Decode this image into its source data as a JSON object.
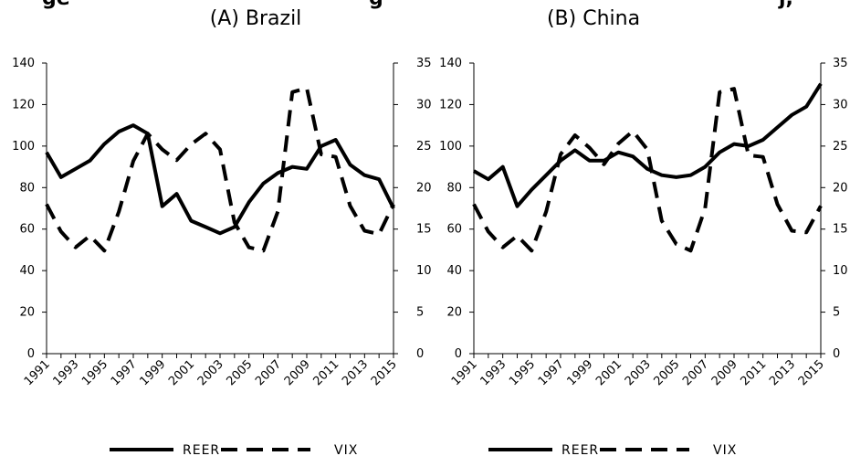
{
  "figure_title_left": "ge",
  "figure_title_mid": "g",
  "figure_title_right": "j,",
  "chart_data": [
    {
      "type": "line",
      "title": "(A) Brazil",
      "x": [
        1991,
        1992,
        1993,
        1994,
        1995,
        1996,
        1997,
        1998,
        1999,
        2000,
        2001,
        2002,
        2003,
        2004,
        2005,
        2006,
        2007,
        2008,
        2009,
        2010,
        2011,
        2012,
        2013,
        2014,
        2015
      ],
      "x_tick_labels": [
        "1991",
        "1993",
        "1995",
        "1997",
        "1999",
        "2001",
        "2003",
        "2005",
        "2007",
        "2009",
        "2011",
        "2013",
        "2015"
      ],
      "y_left_ticks": [
        "0",
        "20",
        "40",
        "60",
        "80",
        "100",
        "120",
        "140"
      ],
      "y_right_ticks": [
        "0",
        "5",
        "10",
        "15",
        "20",
        "25",
        "30",
        "35"
      ],
      "y_left_range": [
        0,
        140
      ],
      "y_right_range": [
        0,
        35
      ],
      "series": [
        {
          "name": "REER",
          "axis": "left",
          "style": "solid",
          "values": [
            97,
            85,
            89,
            93,
            101,
            107,
            110,
            106,
            71,
            77,
            64,
            61,
            58,
            61,
            73,
            82,
            87,
            90,
            89,
            100,
            103,
            91,
            86,
            84,
            70
          ]
        },
        {
          "name": "VIX",
          "axis": "right",
          "style": "dashed",
          "values": [
            18,
            14.7,
            12.8,
            14.2,
            12.4,
            17.1,
            23.2,
            26.5,
            24.6,
            23.3,
            25.2,
            26.5,
            24.6,
            15.8,
            12.8,
            12.4,
            17.1,
            31.5,
            32,
            24,
            23.7,
            17.8,
            14.8,
            14.4,
            18
          ]
        }
      ],
      "legend": [
        "REER",
        "VIX"
      ],
      "legend_position": "bottom"
    },
    {
      "type": "line",
      "title": "(B) China",
      "x": [
        1991,
        1992,
        1993,
        1994,
        1995,
        1996,
        1997,
        1998,
        1999,
        2000,
        2001,
        2002,
        2003,
        2004,
        2005,
        2006,
        2007,
        2008,
        2009,
        2010,
        2011,
        2012,
        2013,
        2014,
        2015
      ],
      "x_tick_labels": [
        "1991",
        "1993",
        "1995",
        "1997",
        "1999",
        "2001",
        "2003",
        "2005",
        "2007",
        "2009",
        "2011",
        "2013",
        "2015"
      ],
      "y_left_ticks": [
        "0",
        "20",
        "40",
        "60",
        "80",
        "100",
        "120",
        "140"
      ],
      "y_right_ticks": [
        "0",
        "5",
        "10",
        "15",
        "20",
        "25",
        "30",
        "35"
      ],
      "y_left_range": [
        0,
        140
      ],
      "y_right_range": [
        0,
        35
      ],
      "series": [
        {
          "name": "REER",
          "axis": "left",
          "style": "solid",
          "values": [
            88,
            84,
            90,
            71,
            79,
            86,
            93,
            98,
            93,
            93,
            97,
            95,
            89,
            86,
            85,
            86,
            90,
            97,
            101,
            100,
            103,
            109,
            115,
            119,
            130
          ]
        },
        {
          "name": "VIX",
          "axis": "right",
          "style": "dashed",
          "values": [
            18,
            14.7,
            12.8,
            14.2,
            12.4,
            17.1,
            24,
            26.3,
            24.8,
            22.8,
            25.3,
            26.8,
            24.6,
            16,
            13.2,
            12.4,
            17.5,
            31.5,
            31.9,
            23.9,
            23.7,
            18,
            14.8,
            14.6,
            17.8
          ]
        }
      ],
      "legend": [
        "REER",
        "VIX"
      ],
      "legend_position": "bottom"
    }
  ]
}
